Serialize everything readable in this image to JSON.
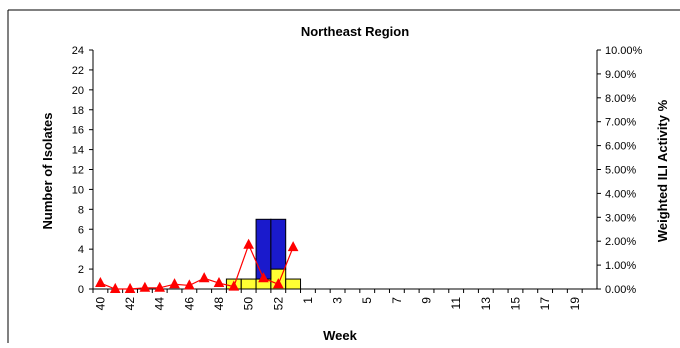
{
  "chart_data": {
    "type": "bar",
    "title": "Northeast Region",
    "xlabel": "Week",
    "ylabel": "Number of Isolates",
    "y2label": "Weighted ILI Activity %",
    "ylim": [
      0,
      24
    ],
    "yticks": [
      "0",
      "2",
      "4",
      "6",
      "8",
      "10",
      "12",
      "14",
      "16",
      "18",
      "20",
      "22",
      "24"
    ],
    "y2lim": [
      0,
      10
    ],
    "y2ticks": [
      "0.00%",
      "1.00%",
      "2.00%",
      "3.00%",
      "4.00%",
      "5.00%",
      "6.00%",
      "7.00%",
      "8.00%",
      "9.00%",
      "10.00%"
    ],
    "categories": [
      "40",
      "41",
      "42",
      "43",
      "44",
      "45",
      "46",
      "47",
      "48",
      "49",
      "50",
      "51",
      "52",
      "53",
      "1",
      "2",
      "3",
      "4",
      "5",
      "6",
      "7",
      "8",
      "9",
      "10",
      "11",
      "12",
      "13",
      "14",
      "15",
      "16",
      "17",
      "18",
      "19",
      "20"
    ],
    "tick_labels": [
      "40",
      "42",
      "44",
      "46",
      "48",
      "50",
      "52",
      "1",
      "3",
      "5",
      "7",
      "9",
      "11",
      "13",
      "15",
      "17",
      "19"
    ],
    "series": [
      {
        "color": "#ffff33",
        "values": [
          0,
          0,
          0,
          0,
          0,
          0,
          0,
          0,
          0,
          1,
          1,
          1,
          2,
          1,
          0,
          0,
          0,
          0,
          0,
          0,
          0,
          0,
          0,
          0,
          0,
          0,
          0,
          0,
          0,
          0,
          0,
          0,
          0,
          0
        ]
      },
      {
        "color": "#1a1acc",
        "values": [
          0,
          0,
          0,
          0,
          0,
          0,
          0,
          0,
          0,
          0,
          0,
          6,
          5,
          0,
          0,
          0,
          0,
          0,
          0,
          0,
          0,
          0,
          0,
          0,
          0,
          0,
          0,
          0,
          0,
          0,
          0,
          0,
          0,
          0
        ]
      }
    ],
    "line_series": {
      "color": "#ff0000",
      "axis": "right",
      "x": [
        "40",
        "41",
        "42",
        "43",
        "44",
        "45",
        "46",
        "47",
        "48",
        "49",
        "50",
        "51",
        "52",
        "53"
      ],
      "values": [
        0.25,
        0.0,
        0.0,
        0.05,
        0.05,
        0.2,
        0.15,
        0.45,
        0.25,
        0.1,
        1.85,
        0.45,
        0.2,
        1.75
      ]
    },
    "grid": false,
    "legend": "none"
  }
}
